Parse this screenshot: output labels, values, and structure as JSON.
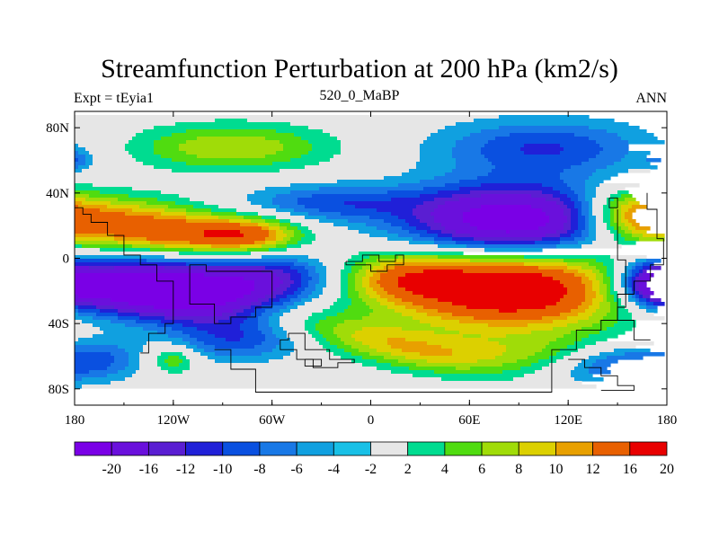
{
  "chart_data": {
    "type": "heatmap",
    "title": "Streamfunction Perturbation at 200 hPa (km2/s)",
    "subtitle_left": "Expt = tEyia1",
    "subtitle_center": "520_0_MaBP",
    "subtitle_right": "ANN",
    "x_range": [
      -180,
      180
    ],
    "y_range": [
      -90,
      90
    ],
    "x_ticks": [
      {
        "value": -180,
        "label": "180"
      },
      {
        "value": -120,
        "label": "120W"
      },
      {
        "value": -60,
        "label": "60W"
      },
      {
        "value": 0,
        "label": "0"
      },
      {
        "value": 60,
        "label": "60E"
      },
      {
        "value": 120,
        "label": "120E"
      },
      {
        "value": 180,
        "label": "180"
      }
    ],
    "y_ticks": [
      {
        "value": 80,
        "label": "80N"
      },
      {
        "value": 40,
        "label": "40N"
      },
      {
        "value": 0,
        "label": "0"
      },
      {
        "value": -40,
        "label": "40S"
      },
      {
        "value": -80,
        "label": "80S"
      }
    ],
    "levels": [
      -20,
      -16,
      -12,
      -10,
      -8,
      -6,
      -4,
      -2,
      2,
      4,
      6,
      8,
      10,
      12,
      16,
      20
    ],
    "level_labels": [
      "-20",
      "-16",
      "-12",
      "-10",
      "-8",
      "-6",
      "-4",
      "-2",
      "2",
      "4",
      "6",
      "8",
      "10",
      "12",
      "16",
      "20"
    ],
    "colors": [
      "#7a00e6",
      "#6a10dc",
      "#5a1ed2",
      "#2020d8",
      "#0a50e0",
      "#1878e6",
      "#10a0e0",
      "#18c0e6",
      "#e6e6e6",
      "#00dc90",
      "#50dc10",
      "#a0dc08",
      "#dcd000",
      "#e8a000",
      "#e86000",
      "#e80000"
    ],
    "blobs": [
      {
        "lon": -85,
        "lat": 68,
        "rx": 42,
        "ry": 10,
        "amp": 8,
        "rot": 0
      },
      {
        "lon": -160,
        "lat": 22,
        "rx": 36,
        "ry": 11,
        "amp": 12,
        "rot": 0
      },
      {
        "lon": -110,
        "lat": 14,
        "rx": 30,
        "ry": 9,
        "amp": 10,
        "rot": 0
      },
      {
        "lon": -72,
        "lat": 14,
        "rx": 22,
        "ry": 8,
        "amp": 11,
        "rot": 0
      },
      {
        "lon": -150,
        "lat": -17,
        "rx": 38,
        "ry": 12,
        "amp": -20,
        "rot": 0
      },
      {
        "lon": -100,
        "lat": -25,
        "rx": 30,
        "ry": 12,
        "amp": -12,
        "rot": 0
      },
      {
        "lon": -60,
        "lat": -12,
        "rx": 28,
        "ry": 11,
        "amp": -10,
        "rot": 0
      },
      {
        "lon": -80,
        "lat": -50,
        "rx": 28,
        "ry": 9,
        "amp": -7,
        "rot": 0
      },
      {
        "lon": -165,
        "lat": -62,
        "rx": 18,
        "ry": 9,
        "amp": -6,
        "rot": 0
      },
      {
        "lon": -120,
        "lat": -62,
        "rx": 10,
        "ry": 6,
        "amp": 6,
        "rot": 0
      },
      {
        "lon": -25,
        "lat": 34,
        "rx": 38,
        "ry": 8,
        "amp": -7,
        "rot": 0
      },
      {
        "lon": 85,
        "lat": 22,
        "rx": 45,
        "ry": 16,
        "amp": -21,
        "rot": 0
      },
      {
        "lon": 105,
        "lat": 68,
        "rx": 45,
        "ry": 12,
        "amp": -8,
        "rot": 0
      },
      {
        "lon": 85,
        "lat": -18,
        "rx": 52,
        "ry": 18,
        "amp": 22,
        "rot": 0
      },
      {
        "lon": 20,
        "lat": -12,
        "rx": 26,
        "ry": 10,
        "amp": 8,
        "rot": 0
      },
      {
        "lon": 10,
        "lat": -52,
        "rx": 45,
        "ry": 9,
        "amp": 8,
        "rot": -12
      },
      {
        "lon": 90,
        "lat": -58,
        "rx": 45,
        "ry": 8,
        "amp": 5,
        "rot": 0
      },
      {
        "lon": 160,
        "lat": 28,
        "rx": 22,
        "ry": 11,
        "amp": 11,
        "rot": 0
      },
      {
        "lon": 172,
        "lat": -15,
        "rx": 14,
        "ry": 9,
        "amp": -12,
        "rot": 0
      },
      {
        "lon": 150,
        "lat": -65,
        "rx": 26,
        "ry": 9,
        "amp": -8,
        "rot": 0
      },
      {
        "lon": -180,
        "lat": 60,
        "rx": 8,
        "ry": 5,
        "amp": -5,
        "rot": 0
      }
    ],
    "coast": [
      [
        [
          -180,
          31
        ],
        [
          -175,
          31
        ],
        [
          -175,
          27
        ],
        [
          -170,
          27
        ],
        [
          -170,
          22
        ],
        [
          -160,
          22
        ],
        [
          -160,
          14
        ],
        [
          -150,
          14
        ],
        [
          -150,
          2
        ],
        [
          -140,
          2
        ],
        [
          -140,
          -4
        ],
        [
          -130,
          -4
        ],
        [
          -130,
          -14
        ],
        [
          -120,
          -14
        ],
        [
          -120,
          -40
        ],
        [
          -125,
          -40
        ],
        [
          -125,
          -46
        ],
        [
          -135,
          -46
        ],
        [
          -135,
          -58
        ],
        [
          -140,
          -58
        ]
      ],
      [
        [
          -110,
          -18
        ],
        [
          -110,
          -4
        ],
        [
          -100,
          -4
        ],
        [
          -100,
          -8
        ],
        [
          -60,
          -8
        ],
        [
          -60,
          -30
        ],
        [
          -70,
          -30
        ],
        [
          -70,
          -36
        ],
        [
          -85,
          -36
        ],
        [
          -85,
          -40
        ],
        [
          -95,
          -40
        ],
        [
          -95,
          -28
        ],
        [
          -110,
          -28
        ],
        [
          -110,
          -18
        ]
      ],
      [
        [
          -95,
          -56
        ],
        [
          -85,
          -56
        ],
        [
          -85,
          -68
        ],
        [
          -70,
          -68
        ],
        [
          -70,
          -82
        ],
        [
          0,
          -82
        ],
        [
          110,
          -82
        ],
        [
          110,
          -56
        ],
        [
          125,
          -56
        ],
        [
          125,
          -44
        ],
        [
          140,
          -44
        ],
        [
          140,
          -38
        ],
        [
          150,
          -38
        ],
        [
          150,
          -22
        ],
        [
          160,
          -22
        ],
        [
          160,
          -14
        ],
        [
          170,
          -14
        ],
        [
          170,
          -4
        ],
        [
          178,
          -4
        ],
        [
          178,
          12
        ],
        [
          174,
          12
        ],
        [
          174,
          30
        ],
        [
          168,
          30
        ],
        [
          168,
          40
        ]
      ],
      [
        [
          -50,
          -46
        ],
        [
          -40,
          -46
        ],
        [
          -40,
          -56
        ],
        [
          -25,
          -56
        ],
        [
          -25,
          -62
        ],
        [
          -10,
          -62
        ],
        [
          -10,
          -64
        ],
        [
          -20,
          -64
        ],
        [
          -20,
          -67
        ],
        [
          -35,
          -67
        ],
        [
          -35,
          -62
        ],
        [
          -45,
          -62
        ],
        [
          -45,
          -56
        ],
        [
          -55,
          -56
        ],
        [
          -55,
          -50
        ],
        [
          -50,
          -50
        ],
        [
          -50,
          -46
        ]
      ],
      [
        [
          -40,
          -62
        ],
        [
          -30,
          -62
        ],
        [
          -30,
          -66
        ],
        [
          -40,
          -66
        ],
        [
          -40,
          -62
        ]
      ],
      [
        [
          -15,
          -2
        ],
        [
          -5,
          -2
        ],
        [
          -5,
          2
        ],
        [
          5,
          2
        ],
        [
          5,
          -2
        ],
        [
          15,
          -2
        ],
        [
          15,
          2
        ],
        [
          20,
          2
        ],
        [
          20,
          -4
        ],
        [
          10,
          -4
        ],
        [
          10,
          -8
        ],
        [
          0,
          -8
        ],
        [
          0,
          -4
        ],
        [
          -15,
          -4
        ],
        [
          -15,
          -2
        ]
      ],
      [
        [
          145,
          37
        ],
        [
          150,
          37
        ],
        [
          150,
          31
        ],
        [
          145,
          31
        ],
        [
          145,
          37
        ]
      ],
      [
        [
          150,
          30
        ],
        [
          150,
          -1
        ],
        [
          155,
          -1
        ],
        [
          155,
          -30
        ],
        [
          150,
          -30
        ],
        [
          150,
          -38
        ],
        [
          160,
          -38
        ],
        [
          160,
          -50
        ],
        [
          170,
          -50
        ]
      ],
      [
        [
          120,
          -62
        ],
        [
          130,
          -62
        ],
        [
          130,
          -67
        ],
        [
          140,
          -67
        ],
        [
          140,
          -72
        ],
        [
          150,
          -72
        ],
        [
          150,
          -78
        ],
        [
          160,
          -78
        ],
        [
          160,
          -81
        ],
        [
          140,
          -81
        ]
      ]
    ]
  }
}
